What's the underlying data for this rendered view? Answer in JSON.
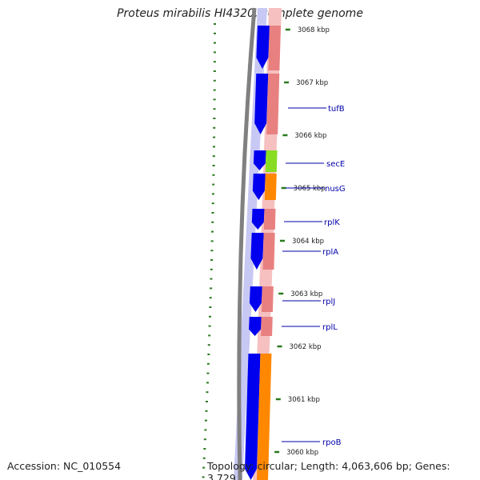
{
  "title": "Proteus mirabilis HI4320, complete genome",
  "footer": {
    "accession": "Accession: NC_010554",
    "topology": "Topology: circular; Length: 4,063,606 bp; Genes: 3,729"
  },
  "colors": {
    "backbone": "#808080",
    "cds_forward": "#0000ee",
    "cds_lane_bg": "#c8c8f4",
    "rna_track": "#e88080",
    "rna_track_bg": "#f6c0c0",
    "secE_color": "#88dd22",
    "rpoB_color": "#ff8800",
    "tick_color": "#2a7a1e",
    "label_color": "#0000aa"
  },
  "ticks": [
    {
      "label": "3068 kbp"
    },
    {
      "label": "3067 kbp"
    },
    {
      "label": "3066 kbp"
    },
    {
      "label": "3065 kbp"
    },
    {
      "label": "3064 kbp"
    },
    {
      "label": "3063 kbp"
    },
    {
      "label": "3062 kbp"
    },
    {
      "label": "3061 kbp"
    },
    {
      "label": "3060 kbp"
    }
  ],
  "genes": [
    {
      "name": "tufB"
    },
    {
      "name": "secE"
    },
    {
      "name": "nusG"
    },
    {
      "name": "rplK"
    },
    {
      "name": "rplA"
    },
    {
      "name": "rplJ"
    },
    {
      "name": "rplL"
    },
    {
      "name": "rpoB"
    }
  ]
}
